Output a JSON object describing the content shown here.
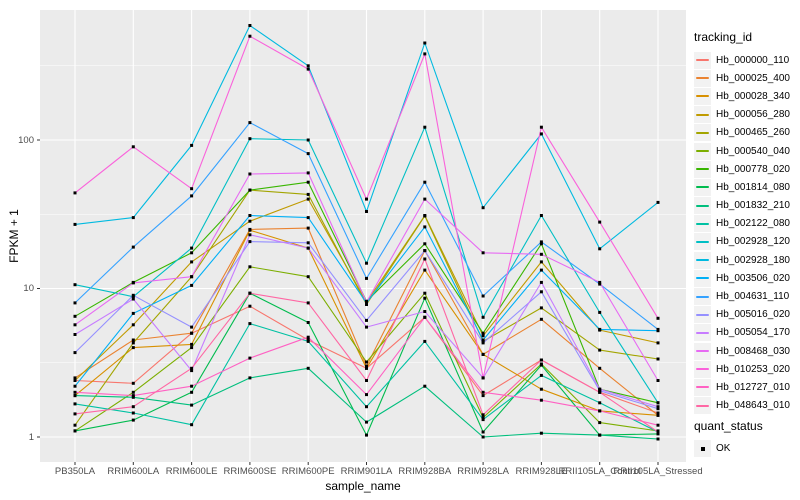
{
  "chart_data": {
    "type": "line",
    "title": "",
    "xlabel": "sample_name",
    "ylabel": "FPKM + 1",
    "yscale": "log10",
    "ylim": [
      0.68,
      750
    ],
    "yticks": [
      1,
      10,
      100
    ],
    "ytick_labels": [
      "1",
      "10",
      "100"
    ],
    "yminor": [
      3.162,
      31.62,
      316.2
    ],
    "grid": true,
    "legend_position": "right",
    "legend_title": "tracking_id",
    "panel_bg": "#EBEBEB",
    "grid_color": "#FFFFFF",
    "tick_mark_color": "#333333",
    "tick_label_color": "#4D4D4D",
    "point_color": "#000000",
    "categories": [
      "PB350LA",
      "RRIM600LA",
      "RRIM600LE",
      "RRIM600SE",
      "RRIM600PE",
      "RRIM901LA",
      "RRIM928BA",
      "RRIM928LA",
      "RRIM928LE",
      "RRII105LA_Control",
      "RRII105LA_Stressed"
    ],
    "series": [
      {
        "name": "Hb_000000_110",
        "color": "#F8766D",
        "values": [
          2.4,
          2.3,
          5.0,
          7.6,
          4.5,
          2.9,
          6.4,
          1.9,
          3.3,
          2.0,
          1.45
        ]
      },
      {
        "name": "Hb_000025_400",
        "color": "#EA8331",
        "values": [
          2.5,
          4.5,
          5.0,
          25,
          25.5,
          3.0,
          18,
          3.6,
          6.2,
          2.9,
          1.4
        ]
      },
      {
        "name": "Hb_000028_340",
        "color": "#D89000",
        "values": [
          1.9,
          4.0,
          4.2,
          24.7,
          18.7,
          2.9,
          13.3,
          3.6,
          2.1,
          1.5,
          1.4
        ]
      },
      {
        "name": "Hb_000056_280",
        "color": "#C09B00",
        "values": [
          2.4,
          5.7,
          15.1,
          28.4,
          40,
          8.1,
          31,
          4.8,
          15.1,
          5.25,
          4.3
        ]
      },
      {
        "name": "Hb_000465_260",
        "color": "#A3A500",
        "values": [
          1.2,
          4.3,
          12,
          46,
          43,
          7.8,
          30.8,
          4.4,
          7.4,
          3.85,
          3.35
        ]
      },
      {
        "name": "Hb_000540_040",
        "color": "#7CAE00",
        "values": [
          1.1,
          2.0,
          4.0,
          14,
          12,
          3.2,
          9.3,
          1.35,
          3.1,
          1.25,
          1.1
        ]
      },
      {
        "name": "Hb_000778_020",
        "color": "#39B600",
        "values": [
          6.5,
          11,
          17.4,
          46,
          52,
          8.2,
          20,
          5.0,
          20,
          2.1,
          1.7
        ]
      },
      {
        "name": "Hb_001814_080",
        "color": "#00BB4E",
        "values": [
          1.1,
          1.3,
          2.0,
          9.3,
          5.9,
          1.03,
          8.6,
          1.08,
          3.05,
          1.03,
          1.05
        ]
      },
      {
        "name": "Hb_001832_210",
        "color": "#00BF7D",
        "values": [
          1.9,
          1.85,
          1.64,
          2.5,
          2.9,
          1.26,
          2.2,
          1.0,
          1.06,
          1.03,
          0.97
        ]
      },
      {
        "name": "Hb_002122_080",
        "color": "#00C1A3",
        "values": [
          1.67,
          1.45,
          1.21,
          5.8,
          4.4,
          1.6,
          4.4,
          1.31,
          2.6,
          1.7,
          1.08
        ]
      },
      {
        "name": "Hb_002928_120",
        "color": "#00BFC4",
        "values": [
          10.6,
          8.8,
          18.7,
          102,
          100,
          14.8,
          122,
          6.4,
          31,
          6.9,
          1.7
        ]
      },
      {
        "name": "Hb_002928_180",
        "color": "#00BAE0",
        "values": [
          27,
          30,
          92,
          590,
          316,
          33,
          450,
          35,
          110,
          18.5,
          38
        ]
      },
      {
        "name": "Hb_003506_020",
        "color": "#00B0F6",
        "values": [
          2.2,
          6.8,
          10.5,
          31,
          30,
          8.0,
          26,
          4.5,
          13.3,
          5.3,
          5.2
        ]
      },
      {
        "name": "Hb_004631_110",
        "color": "#35A2FF",
        "values": [
          8.0,
          19,
          42,
          131,
          81,
          11.7,
          52,
          8.9,
          20.6,
          10.7,
          5.3
        ]
      },
      {
        "name": "Hb_005016_020",
        "color": "#9590FF",
        "values": [
          3.7,
          9.0,
          5.5,
          20.7,
          20.3,
          6.1,
          18,
          4.3,
          9.5,
          2.05,
          1.55
        ]
      },
      {
        "name": "Hb_005054_170",
        "color": "#C77CFF",
        "values": [
          4.9,
          8.5,
          2.8,
          23,
          18.7,
          5.5,
          7.0,
          2.5,
          11,
          2.1,
          1.6
        ]
      },
      {
        "name": "Hb_008468_030",
        "color": "#E76BF3",
        "values": [
          5.7,
          10.9,
          12,
          59,
          60,
          8.1,
          40,
          17.4,
          17,
          11,
          2.4
        ]
      },
      {
        "name": "Hb_010253_020",
        "color": "#FA62DB",
        "values": [
          44,
          90,
          47,
          500,
          300,
          40,
          380,
          2.5,
          122,
          28,
          6.3
        ]
      },
      {
        "name": "Hb_012727_010",
        "color": "#FF61C3",
        "values": [
          2.0,
          1.9,
          2.2,
          3.4,
          4.7,
          1.93,
          6.4,
          2.0,
          1.77,
          1.5,
          1.2
        ]
      },
      {
        "name": "Hb_048643_010",
        "color": "#FF67A4",
        "values": [
          1.43,
          1.6,
          2.9,
          9.3,
          8.0,
          2.4,
          15.8,
          1.41,
          3.3,
          2.0,
          1.08
        ]
      }
    ],
    "quant_legend": {
      "title": "quant_status",
      "items": [
        {
          "label": "OK",
          "marker": "black-square"
        }
      ]
    }
  }
}
